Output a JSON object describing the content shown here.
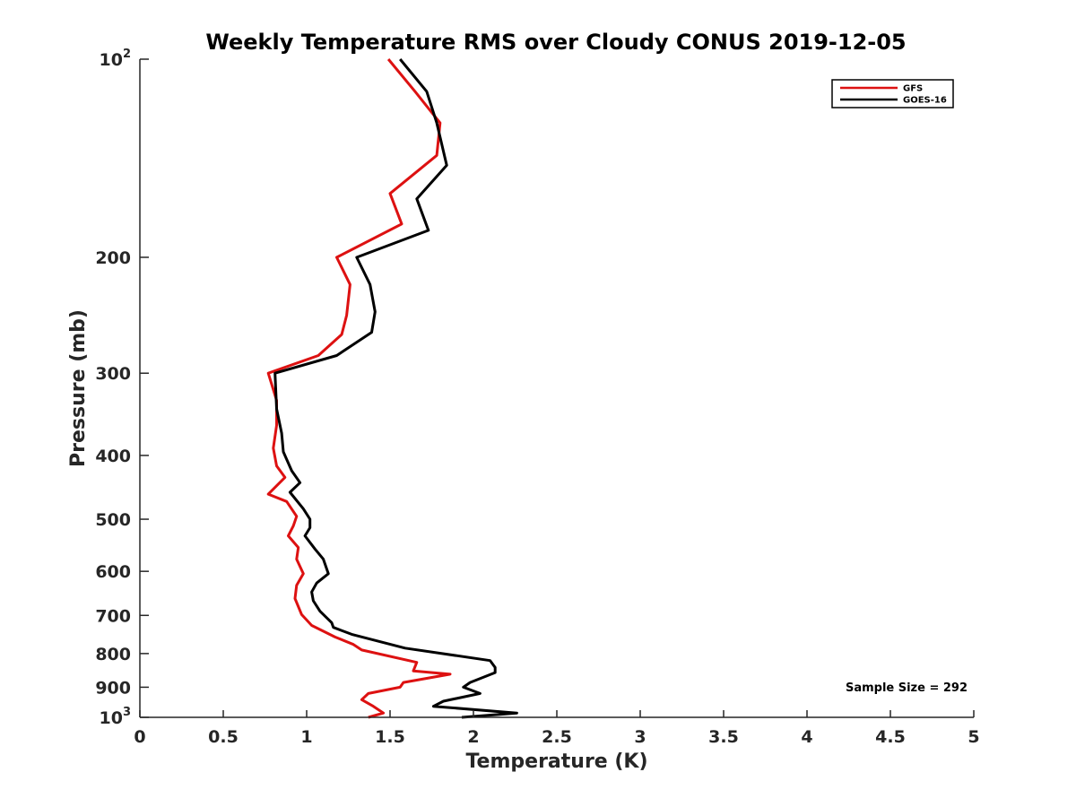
{
  "chart_data": {
    "type": "line",
    "title": "Weekly Temperature RMS over Cloudy CONUS 2019-12-05",
    "xlabel": "Temperature (K)",
    "ylabel": "Pressure (mb)",
    "xlim": [
      0,
      5
    ],
    "ylim": [
      1000,
      100
    ],
    "yscale": "log",
    "x_ticks": [
      0,
      0.5,
      1,
      1.5,
      2,
      2.5,
      3,
      3.5,
      4,
      4.5,
      5
    ],
    "x_tick_labels": [
      "0",
      "0.5",
      "1",
      "1.5",
      "2",
      "2.5",
      "3",
      "3.5",
      "4",
      "4.5",
      "5"
    ],
    "y_ticks": [
      {
        "value": 100,
        "base": "10",
        "exp": "2"
      },
      {
        "value": 200,
        "base": "200",
        "exp": ""
      },
      {
        "value": 300,
        "base": "300",
        "exp": ""
      },
      {
        "value": 400,
        "base": "400",
        "exp": ""
      },
      {
        "value": 500,
        "base": "500",
        "exp": ""
      },
      {
        "value": 600,
        "base": "600",
        "exp": ""
      },
      {
        "value": 700,
        "base": "700",
        "exp": ""
      },
      {
        "value": 800,
        "base": "800",
        "exp": ""
      },
      {
        "value": 900,
        "base": "900",
        "exp": ""
      },
      {
        "value": 1000,
        "base": "10",
        "exp": "3"
      }
    ],
    "grid": false,
    "legend_position": "top-right",
    "annotation": "Sample Size = 292",
    "series": [
      {
        "name": "GFS",
        "color": "#dd1111",
        "points": [
          [
            1.49,
            100
          ],
          [
            1.65,
            112
          ],
          [
            1.8,
            125
          ],
          [
            1.78,
            140
          ],
          [
            1.5,
            160
          ],
          [
            1.57,
            178
          ],
          [
            1.18,
            200
          ],
          [
            1.26,
            220
          ],
          [
            1.24,
            245
          ],
          [
            1.21,
            262
          ],
          [
            1.07,
            282
          ],
          [
            0.77,
            300
          ],
          [
            0.82,
            330
          ],
          [
            0.82,
            360
          ],
          [
            0.8,
            390
          ],
          [
            0.82,
            415
          ],
          [
            0.87,
            432
          ],
          [
            0.77,
            458
          ],
          [
            0.88,
            470
          ],
          [
            0.94,
            495
          ],
          [
            0.92,
            512
          ],
          [
            0.89,
            530
          ],
          [
            0.95,
            552
          ],
          [
            0.94,
            575
          ],
          [
            0.98,
            605
          ],
          [
            0.94,
            630
          ],
          [
            0.93,
            660
          ],
          [
            0.97,
            698
          ],
          [
            1.03,
            725
          ],
          [
            1.17,
            755
          ],
          [
            1.28,
            775
          ],
          [
            1.33,
            790
          ],
          [
            1.66,
            825
          ],
          [
            1.64,
            850
          ],
          [
            1.86,
            860
          ],
          [
            1.58,
            885
          ],
          [
            1.56,
            900
          ],
          [
            1.37,
            920
          ],
          [
            1.33,
            940
          ],
          [
            1.4,
            962
          ],
          [
            1.46,
            985
          ],
          [
            1.37,
            1000
          ]
        ]
      },
      {
        "name": "GOES-16",
        "color": "#000000",
        "points": [
          [
            1.56,
            100
          ],
          [
            1.72,
            112
          ],
          [
            1.78,
            125
          ],
          [
            1.84,
            145
          ],
          [
            1.66,
            163
          ],
          [
            1.73,
            182
          ],
          [
            1.3,
            200
          ],
          [
            1.38,
            220
          ],
          [
            1.41,
            242
          ],
          [
            1.39,
            260
          ],
          [
            1.18,
            282
          ],
          [
            0.81,
            300
          ],
          [
            0.82,
            340
          ],
          [
            0.85,
            370
          ],
          [
            0.86,
            395
          ],
          [
            0.91,
            422
          ],
          [
            0.96,
            440
          ],
          [
            0.9,
            455
          ],
          [
            0.98,
            482
          ],
          [
            1.02,
            500
          ],
          [
            1.02,
            515
          ],
          [
            0.99,
            530
          ],
          [
            1.05,
            555
          ],
          [
            1.1,
            575
          ],
          [
            1.13,
            605
          ],
          [
            1.06,
            625
          ],
          [
            1.03,
            645
          ],
          [
            1.04,
            665
          ],
          [
            1.08,
            690
          ],
          [
            1.15,
            718
          ],
          [
            1.16,
            730
          ],
          [
            1.27,
            748
          ],
          [
            1.59,
            785
          ],
          [
            2.1,
            820
          ],
          [
            2.13,
            840
          ],
          [
            2.13,
            855
          ],
          [
            1.98,
            885
          ],
          [
            1.94,
            900
          ],
          [
            2.04,
            920
          ],
          [
            1.82,
            945
          ],
          [
            1.76,
            962
          ],
          [
            2.26,
            985
          ],
          [
            1.93,
            1000
          ]
        ]
      }
    ]
  }
}
